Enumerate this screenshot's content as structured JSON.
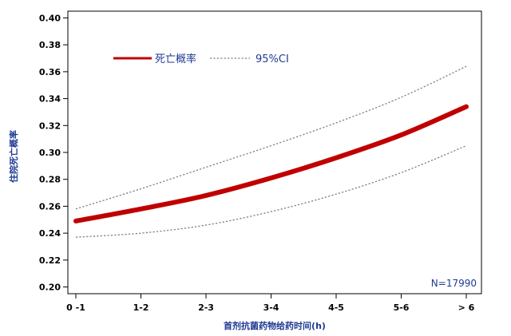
{
  "chart_data": {
    "type": "line",
    "xlabel": "首剂抗菌药物给药时间(h)",
    "ylabel": "住院死亡概率",
    "categories": [
      "0 -1",
      "1-2",
      "2-3",
      "3-4",
      "4-5",
      "5-6",
      "> 6"
    ],
    "ylim": [
      0.195,
      0.405
    ],
    "yticks": [
      "0.20",
      "0.22",
      "0.24",
      "0.26",
      "0.28",
      "0.30",
      "0.32",
      "0.34",
      "0.36",
      "0.38",
      "0.40"
    ],
    "grid": false,
    "legend_position": "top-left",
    "series": [
      {
        "name": "死亡概率",
        "color": "#c00000",
        "style": "solid",
        "values": [
          0.249,
          0.258,
          0.268,
          0.281,
          0.296,
          0.313,
          0.334
        ]
      },
      {
        "name": "95%CI",
        "color": "#808080",
        "style": "dotted",
        "values": [
          0.258,
          0.273,
          0.289,
          0.305,
          0.322,
          0.341,
          0.364
        ]
      },
      {
        "name": "",
        "color": "#808080",
        "style": "dotted",
        "values": [
          0.237,
          0.24,
          0.246,
          0.256,
          0.269,
          0.285,
          0.305
        ]
      }
    ],
    "annotation": "N=17990"
  }
}
